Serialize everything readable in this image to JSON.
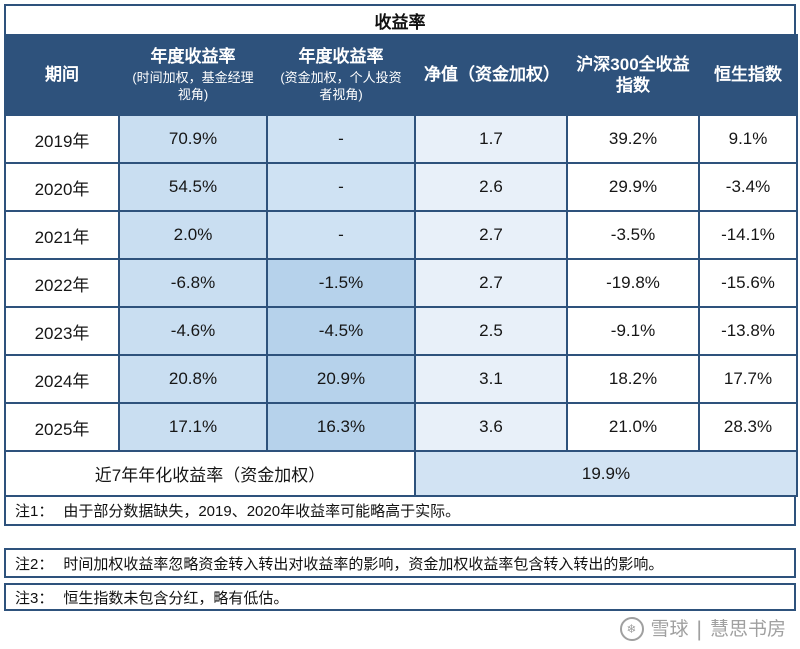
{
  "chart_data": {
    "type": "table",
    "title": "收益率",
    "columns": [
      "期间",
      "年度收益率（时间加权，基金经理视角）",
      "年度收益率（资金加权，个人投资者视角）",
      "净值（资金加权）",
      "沪深300全收益指数",
      "恒生指数"
    ],
    "rows": [
      [
        "2019年",
        "70.9%",
        "-",
        "1.7",
        "39.2%",
        "9.1%"
      ],
      [
        "2020年",
        "54.5%",
        "-",
        "2.6",
        "29.9%",
        "-3.4%"
      ],
      [
        "2021年",
        "2.0%",
        "-",
        "2.7",
        "-3.5%",
        "-14.1%"
      ],
      [
        "2022年",
        "-6.8%",
        "-1.5%",
        "2.7",
        "-19.8%",
        "-15.6%"
      ],
      [
        "2023年",
        "-4.6%",
        "-4.5%",
        "2.5",
        "-9.1%",
        "-13.8%"
      ],
      [
        "2024年",
        "20.8%",
        "20.9%",
        "3.1",
        "18.2%",
        "17.7%"
      ],
      [
        "2025年",
        "17.1%",
        "16.3%",
        "3.6",
        "21.0%",
        "28.3%"
      ]
    ],
    "summary_row": [
      "近7年年化收益率（资金加权）",
      "19.9%"
    ]
  },
  "header_display": [
    {
      "main": "期间",
      "sub": ""
    },
    {
      "main": "年度收益率",
      "sub": "(时间加权，基金经理视角)"
    },
    {
      "main": "年度收益率",
      "sub": "(资金加权，个人投资者视角)"
    },
    {
      "main": "净值（资金加权）",
      "sub": ""
    },
    {
      "main": "沪深300全收益指数",
      "sub": ""
    },
    {
      "main": "恒生指数",
      "sub": ""
    }
  ],
  "notes": [
    {
      "tag": "注1：",
      "text": "由于部分数据缺失，2019、2020年收益率可能略高于实际。"
    },
    {
      "tag": "注2：",
      "text": "时间加权收益率忽略资金转入转出对收益率的影响，资金加权收益率包含转入转出的影响。"
    },
    {
      "tag": "注3：",
      "text": "恒生指数未包含分红，略有低估。"
    }
  ],
  "watermark": {
    "icon_glyph": "❄",
    "brand": "雪球",
    "divider": "|",
    "name": "慧思书房"
  },
  "colors": {
    "header_bg": "#2e527c",
    "border": "#2e527c",
    "header_text": "#ffffff",
    "body_text": "#161616",
    "tw_bg": "#c9def1",
    "mw_bg": "#b6d2eb",
    "mw_light_bg": "#cfe2f3",
    "nav_bg": "#e8f0f9",
    "summary_value_bg": "#d2e3f3",
    "watermark": "#a0a0a0"
  }
}
